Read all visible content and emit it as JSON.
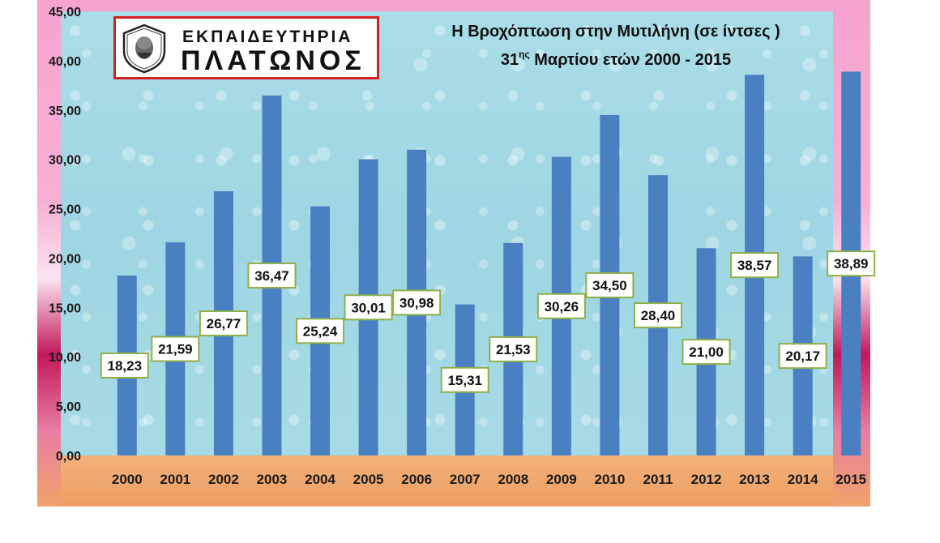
{
  "logo": {
    "line1": "ΕΚΠΑΙΔΕΥΤΗΡΙΑ",
    "line2": "ΠΛΑΤΩΝΟΣ",
    "emblem": "platon-head-emblem"
  },
  "chart_data": {
    "type": "bar",
    "title_line1": "Η Βροχόπτωση στην Μυτιλήνη (σε ίντσες )",
    "title_line2_pre": "31",
    "title_line2_sup": "ης",
    "title_line2_post": " Μαρτίου ετών 2000 - 2015",
    "categories": [
      "2000",
      "2001",
      "2002",
      "2003",
      "2004",
      "2005",
      "2006",
      "2007",
      "2008",
      "2009",
      "2010",
      "2011",
      "2012",
      "2013",
      "2014",
      "2015"
    ],
    "values": [
      18.23,
      21.59,
      26.77,
      36.47,
      25.24,
      30.01,
      30.98,
      15.31,
      21.53,
      30.26,
      34.5,
      28.4,
      21.0,
      38.57,
      20.17,
      38.89
    ],
    "data_labels": [
      "18,23",
      "21,59",
      "26,77",
      "36,47",
      "25,24",
      "30,01",
      "30,98",
      "15,31",
      "21,53",
      "30,26",
      "34,50",
      "28,40",
      "21,00",
      "38,57",
      "20,17",
      "38,89"
    ],
    "y_ticks": [
      "0,00",
      "5,00",
      "10,00",
      "15,00",
      "20,00",
      "25,00",
      "30,00",
      "35,00",
      "40,00",
      "45,00"
    ],
    "ylim": [
      0,
      45
    ],
    "xlabel": "",
    "ylabel": "",
    "bar_color": "#4a7fc1",
    "label_border_color": "#8fb04a",
    "legend": "none"
  }
}
